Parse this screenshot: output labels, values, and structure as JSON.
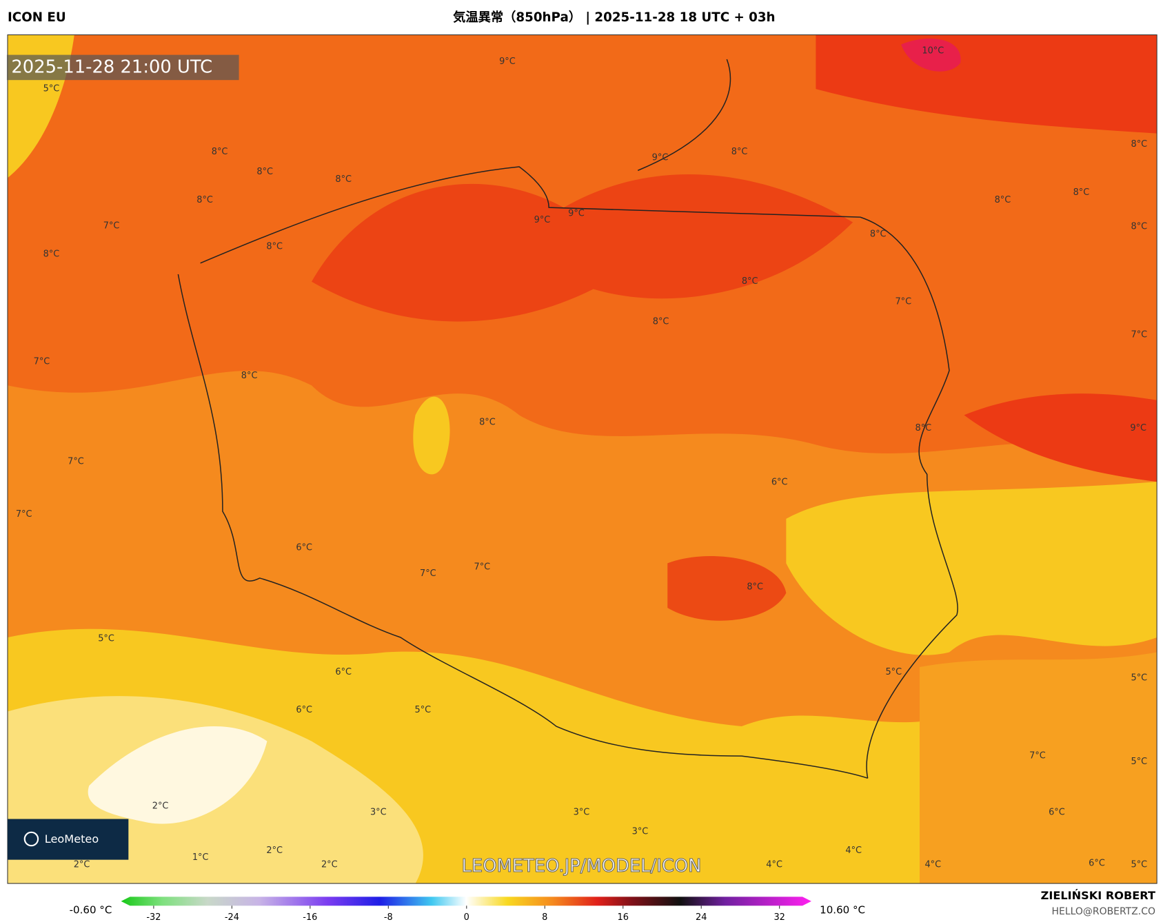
{
  "header": {
    "model": "ICON EU",
    "title": "気温異常（850hPa） | 2025-11-28 18 UTC + 03h"
  },
  "map": {
    "timestamp": "2025-11-28 21:00 UTC",
    "watermark": "LEOMETEO.JP/MODEL/ICON",
    "logo": "LeoMeteo",
    "labels": [
      "9°C",
      "10°C",
      "5°C",
      "8°C",
      "8°C",
      "8°C",
      "8°C",
      "9°C",
      "8°C",
      "9°C",
      "9°C",
      "7°C",
      "8°C",
      "8°C",
      "8°C",
      "8°C",
      "8°C",
      "8°C",
      "8°C",
      "8°C",
      "7°C",
      "8°C",
      "7°C",
      "7°C",
      "8°C",
      "8°C",
      "8°C",
      "9°C",
      "7°C",
      "6°C",
      "7°C",
      "6°C",
      "7°C",
      "7°C",
      "8°C",
      "5°C",
      "6°C",
      "5°C",
      "5°C",
      "6°C",
      "5°C",
      "7°C",
      "5°C",
      "2°C",
      "3°C",
      "3°C",
      "3°C",
      "6°C",
      "4°C",
      "2°C",
      "1°C",
      "2°C",
      "2°C",
      "4°C",
      "4°C",
      "6°C",
      "5°C"
    ]
  },
  "colorbar": {
    "min_label": "-0.60 °C",
    "max_label": "10.60 °C",
    "ticks": [
      "-32",
      "-24",
      "-16",
      "-8",
      "0",
      "8",
      "16",
      "24",
      "32"
    ]
  },
  "credit": {
    "name": "ZIELIŃSKI ROBERT",
    "contact": "HELLO@ROBERTZ.CO"
  }
}
